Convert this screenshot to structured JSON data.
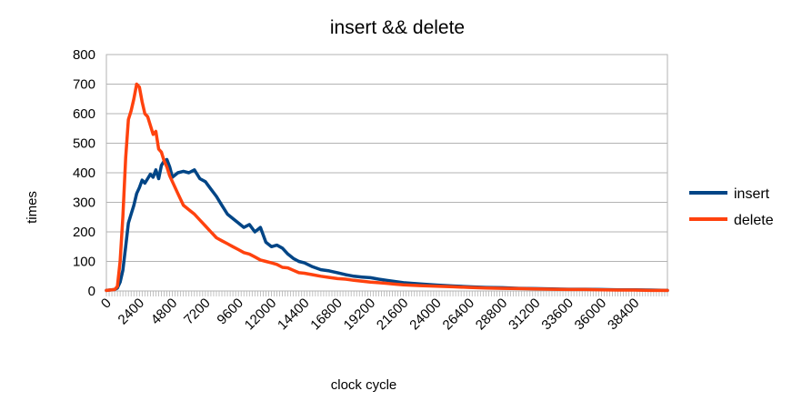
{
  "chart_data": {
    "type": "line",
    "title": "insert && delete",
    "xlabel": "clock cycle",
    "ylabel": "times",
    "xlim": [
      0,
      40800
    ],
    "ylim": [
      0,
      800
    ],
    "yticks": [
      0,
      100,
      200,
      300,
      400,
      500,
      600,
      700,
      800
    ],
    "xtick_labels": [
      "0",
      "2400",
      "4800",
      "7200",
      "9600",
      "12000",
      "14400",
      "16800",
      "19200",
      "21600",
      "24000",
      "26400",
      "28800",
      "31200",
      "33600",
      "36000",
      "38400"
    ],
    "grid": true,
    "legend_position": "right",
    "series": [
      {
        "name": "insert",
        "color": "#004586",
        "x": [
          0,
          600,
          800,
          1000,
          1200,
          1400,
          1600,
          1800,
          2000,
          2200,
          2400,
          2600,
          2800,
          3000,
          3200,
          3400,
          3600,
          3800,
          4000,
          4200,
          4400,
          4600,
          4800,
          5200,
          5600,
          6000,
          6400,
          6800,
          7200,
          7600,
          8000,
          8400,
          8800,
          9200,
          9600,
          10000,
          10400,
          10800,
          11200,
          11600,
          12000,
          12400,
          12800,
          13200,
          13600,
          14000,
          14400,
          15000,
          15600,
          16200,
          16800,
          17400,
          18000,
          18600,
          19200,
          19800,
          20400,
          21000,
          21600,
          22800,
          24000,
          25200,
          26400,
          27600,
          28800,
          30000,
          31200,
          32400,
          33600,
          34800,
          36000,
          37200,
          38400,
          39600,
          40800
        ],
        "y": [
          2,
          5,
          10,
          30,
          70,
          150,
          230,
          260,
          290,
          330,
          350,
          375,
          365,
          380,
          395,
          385,
          410,
          380,
          425,
          440,
          445,
          420,
          385,
          400,
          405,
          400,
          410,
          380,
          370,
          345,
          320,
          290,
          260,
          245,
          230,
          215,
          225,
          200,
          215,
          165,
          150,
          155,
          145,
          125,
          110,
          100,
          95,
          82,
          72,
          68,
          62,
          55,
          50,
          47,
          45,
          40,
          36,
          32,
          28,
          24,
          20,
          17,
          14,
          12,
          11,
          9,
          8,
          7,
          6,
          6,
          5,
          4,
          4,
          3,
          2
        ]
      },
      {
        "name": "delete",
        "color": "#ff420e",
        "x": [
          0,
          600,
          800,
          1000,
          1200,
          1400,
          1600,
          1800,
          2000,
          2200,
          2400,
          2600,
          2800,
          3000,
          3200,
          3400,
          3600,
          3800,
          4000,
          4200,
          4400,
          4600,
          4800,
          5200,
          5600,
          6000,
          6400,
          6800,
          7200,
          7600,
          8000,
          8400,
          8800,
          9200,
          9600,
          10000,
          10400,
          10800,
          11200,
          11600,
          12000,
          12400,
          12800,
          13200,
          13600,
          14000,
          14400,
          15000,
          15600,
          16200,
          16800,
          17400,
          18000,
          18600,
          19200,
          19800,
          20400,
          21000,
          21600,
          22800,
          24000,
          25200,
          26400,
          27600,
          28800,
          30000,
          31200,
          32400,
          33600,
          34800,
          36000,
          37200,
          38400,
          39600,
          40800
        ],
        "y": [
          2,
          5,
          15,
          100,
          250,
          450,
          580,
          610,
          650,
          700,
          690,
          640,
          600,
          590,
          560,
          530,
          540,
          480,
          470,
          440,
          420,
          390,
          370,
          330,
          290,
          275,
          260,
          240,
          220,
          200,
          180,
          170,
          160,
          150,
          140,
          130,
          125,
          115,
          105,
          100,
          95,
          90,
          80,
          78,
          70,
          62,
          60,
          55,
          50,
          46,
          42,
          40,
          36,
          33,
          30,
          28,
          26,
          23,
          21,
          18,
          16,
          14,
          12,
          10,
          9,
          8,
          7,
          6,
          5,
          5,
          4,
          3,
          3,
          2,
          2
        ]
      }
    ]
  }
}
